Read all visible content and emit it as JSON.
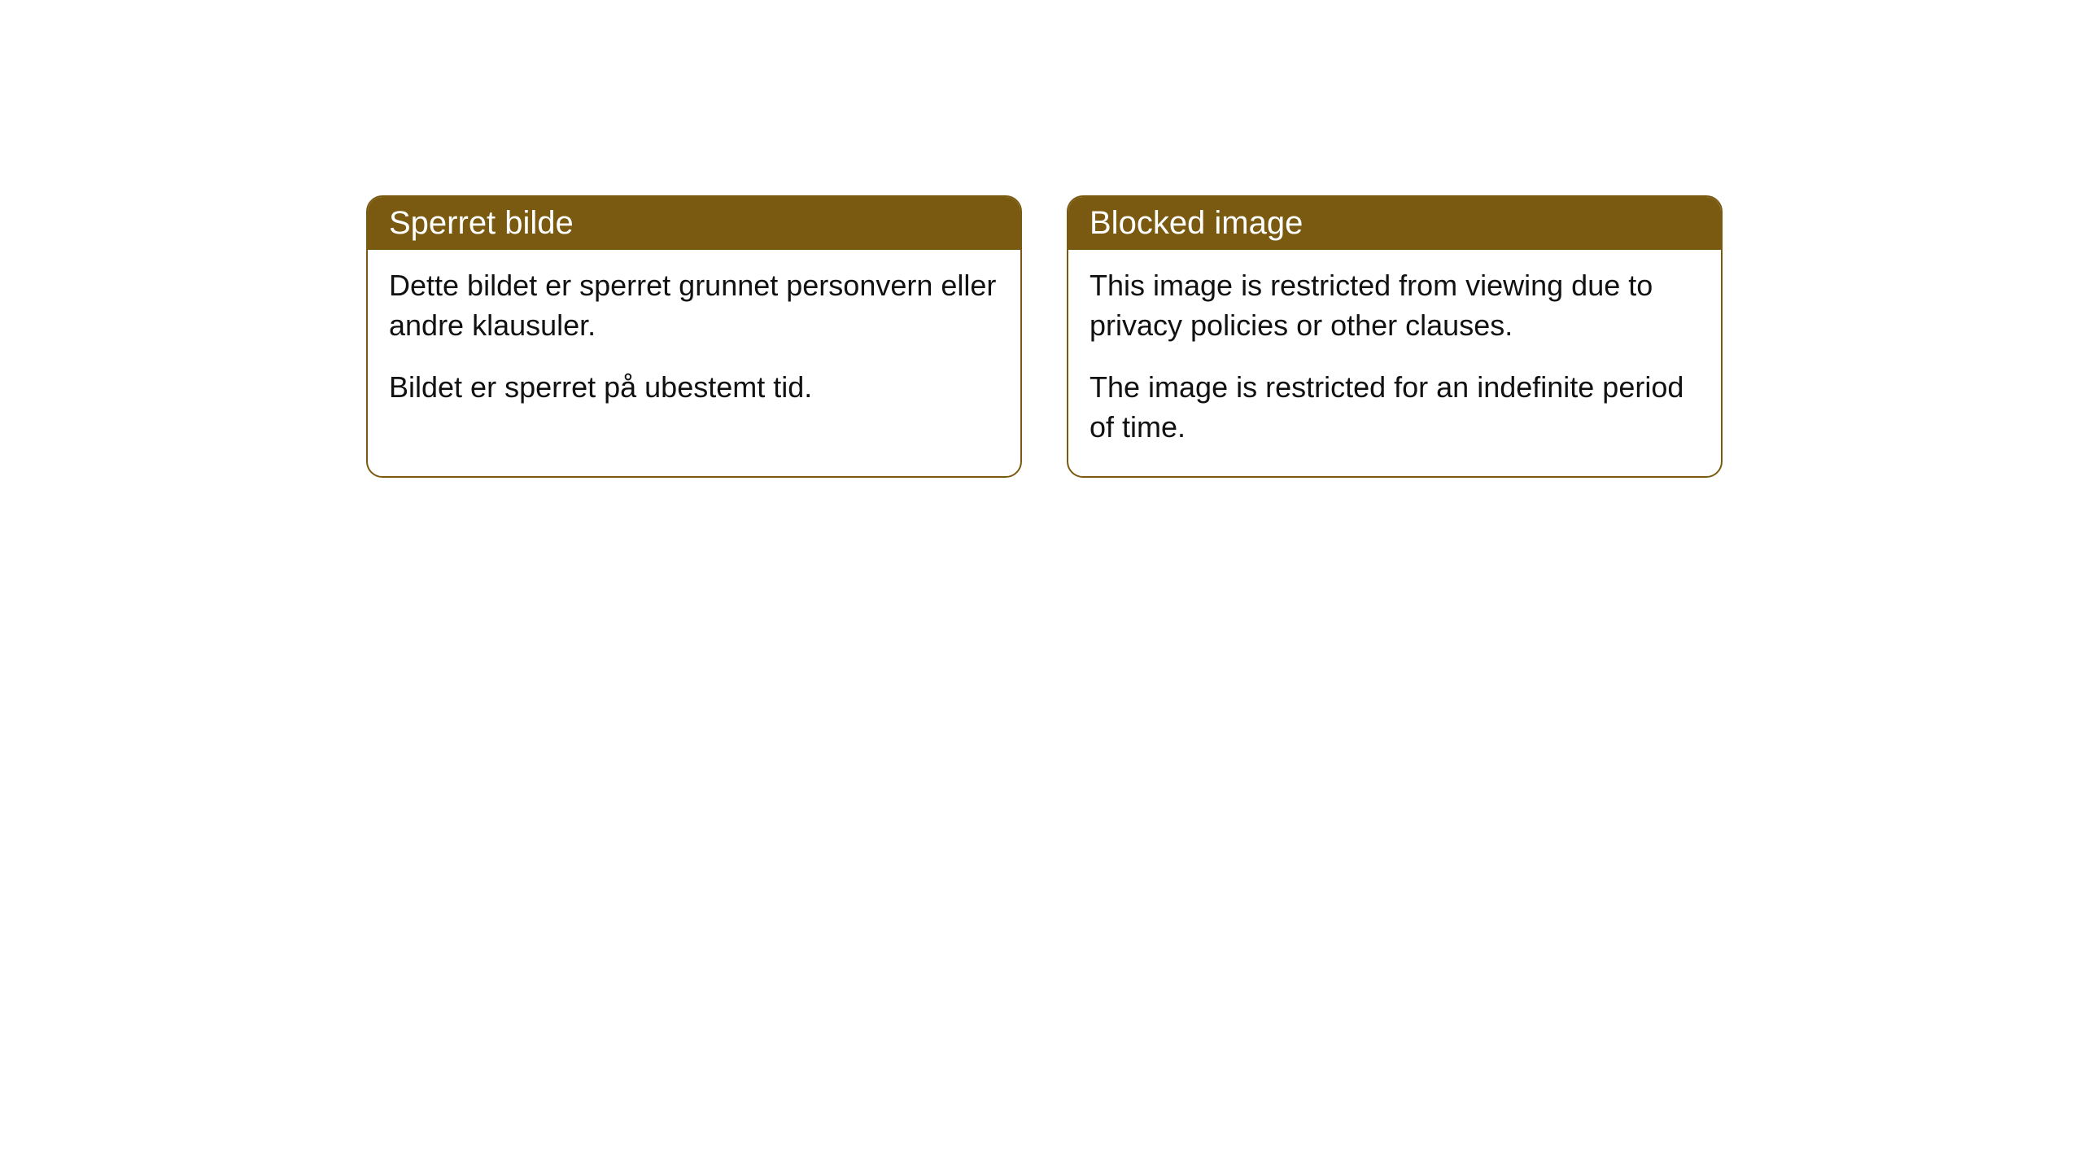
{
  "cards": [
    {
      "title": "Sperret bilde",
      "paragraph1": "Dette bildet er sperret grunnet personvern eller andre klausuler.",
      "paragraph2": "Bildet er sperret på ubestemt tid."
    },
    {
      "title": "Blocked image",
      "paragraph1": "This image is restricted from viewing due to privacy policies or other clauses.",
      "paragraph2": "The image is restricted for an indefinite period of time."
    }
  ],
  "style": {
    "header_background": "#7a5a10",
    "header_text_color": "#ffffff",
    "border_color": "#7a5a10",
    "body_background": "#ffffff",
    "body_text_color": "#111111",
    "border_radius": 20,
    "title_fontsize": 40,
    "body_fontsize": 36
  }
}
